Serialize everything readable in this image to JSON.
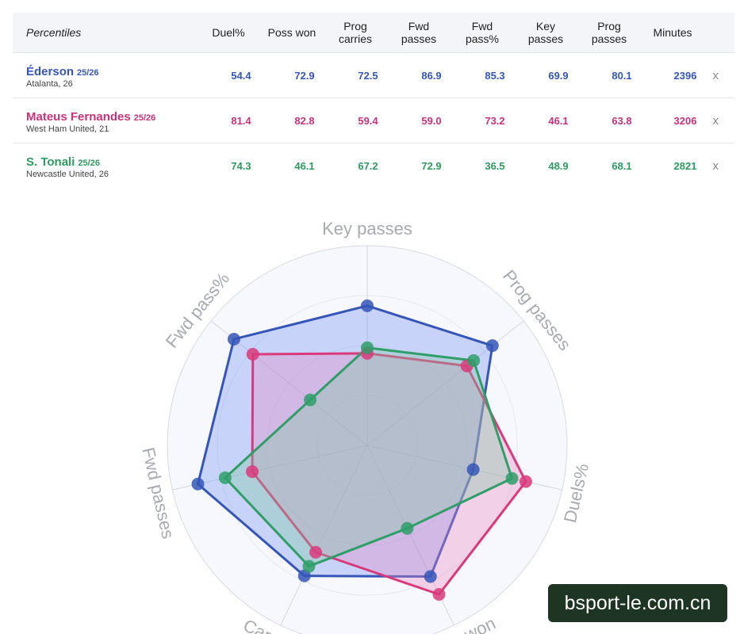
{
  "table": {
    "headers": [
      "Percentiles",
      "Duel%",
      "Poss won",
      "Prog\ncarries",
      "Fwd\npasses",
      "Fwd\npass%",
      "Key\npasses",
      "Prog\npasses",
      "Minutes"
    ],
    "remove_label": "x",
    "rows": [
      {
        "name": "Éderson",
        "season": "25/26",
        "club": "Atalanta, 26",
        "values": [
          "54.4",
          "72.9",
          "72.5",
          "86.9",
          "85.3",
          "69.9",
          "80.1",
          "2396"
        ],
        "color": "#3556b8"
      },
      {
        "name": "Mateus Fernandes",
        "season": "25/26",
        "club": "West Ham United, 21",
        "values": [
          "81.4",
          "82.8",
          "59.4",
          "59.0",
          "73.2",
          "46.1",
          "63.8",
          "3206"
        ],
        "color": "#c8327a"
      },
      {
        "name": "S. Tonali",
        "season": "25/26",
        "club": "Newcastle United, 26",
        "values": [
          "74.3",
          "46.1",
          "67.2",
          "72.9",
          "36.5",
          "48.9",
          "68.1",
          "2821"
        ],
        "color": "#2e9a5e"
      }
    ]
  },
  "chart_data": {
    "type": "radar",
    "axes": [
      "Key passes",
      "Prog passes",
      "Duels%",
      "Poss won",
      "Carrying",
      "Fwd passes",
      "Fwd pass%"
    ],
    "range": [
      0,
      100
    ],
    "series": [
      {
        "name": "Éderson",
        "color": "#3556b8",
        "fill": "#6f90ee",
        "values": [
          69.9,
          80.1,
          54.4,
          72.9,
          72.5,
          86.9,
          85.3
        ]
      },
      {
        "name": "Mateus Fernandes",
        "color": "#d93a7c",
        "fill": "#e987c0",
        "values": [
          46.1,
          63.8,
          81.4,
          82.8,
          59.4,
          59.0,
          73.2
        ]
      },
      {
        "name": "S. Tonali",
        "color": "#2f9e68",
        "fill": "#7ec9a1",
        "values": [
          48.9,
          68.1,
          74.3,
          46.1,
          67.2,
          72.9,
          36.5
        ]
      }
    ],
    "grid": true
  },
  "watermark": "bsport-le.com.cn"
}
